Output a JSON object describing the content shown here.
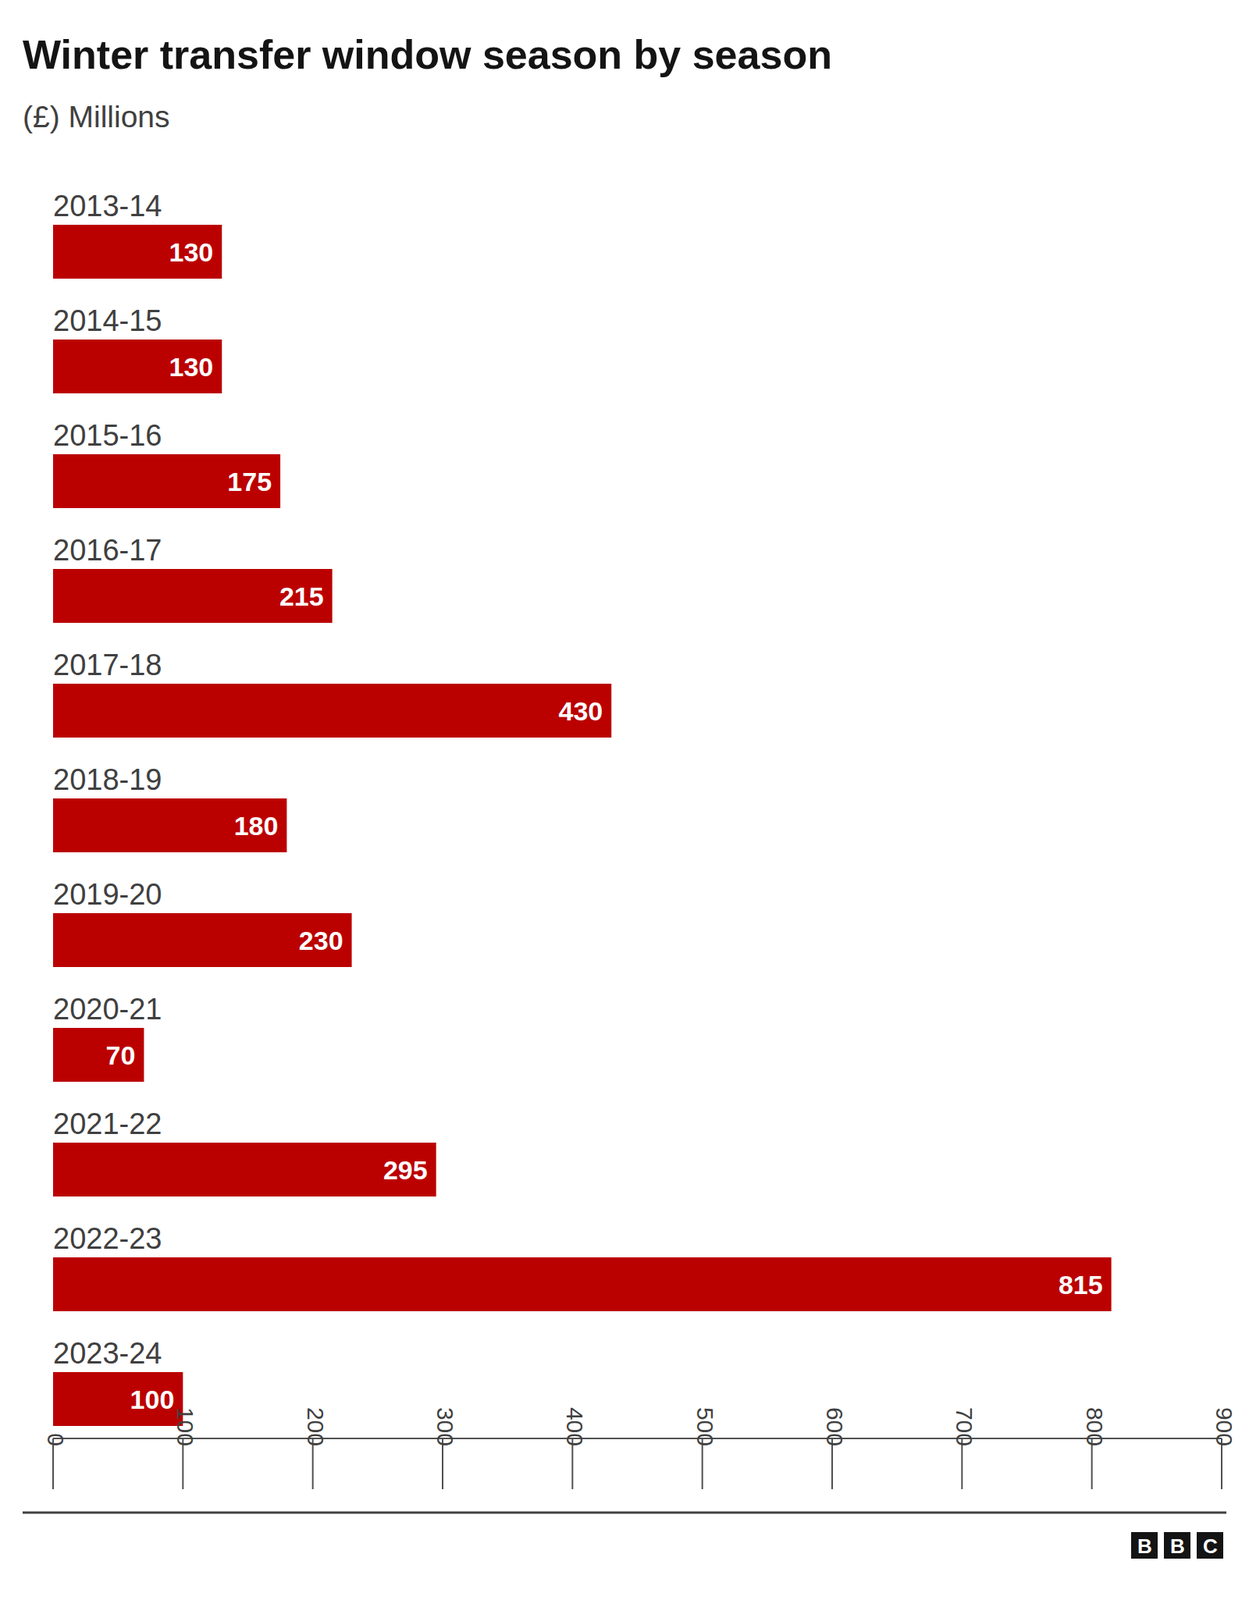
{
  "chart_data": {
    "type": "bar",
    "orientation": "horizontal",
    "title": "Winter transfer window season by season",
    "subtitle": "(£) Millions",
    "categories": [
      "2013-14",
      "2014-15",
      "2015-16",
      "2016-17",
      "2017-18",
      "2018-19",
      "2019-20",
      "2020-21",
      "2021-22",
      "2022-23",
      "2023-24"
    ],
    "values": [
      130,
      130,
      175,
      215,
      430,
      180,
      230,
      70,
      295,
      815,
      100
    ],
    "color": "#bb0000",
    "xlim": [
      0,
      900
    ],
    "xticks": [
      0,
      100,
      200,
      300,
      400,
      500,
      600,
      700,
      800,
      900
    ],
    "grid": false,
    "data_labels": true,
    "source": "BBC"
  }
}
